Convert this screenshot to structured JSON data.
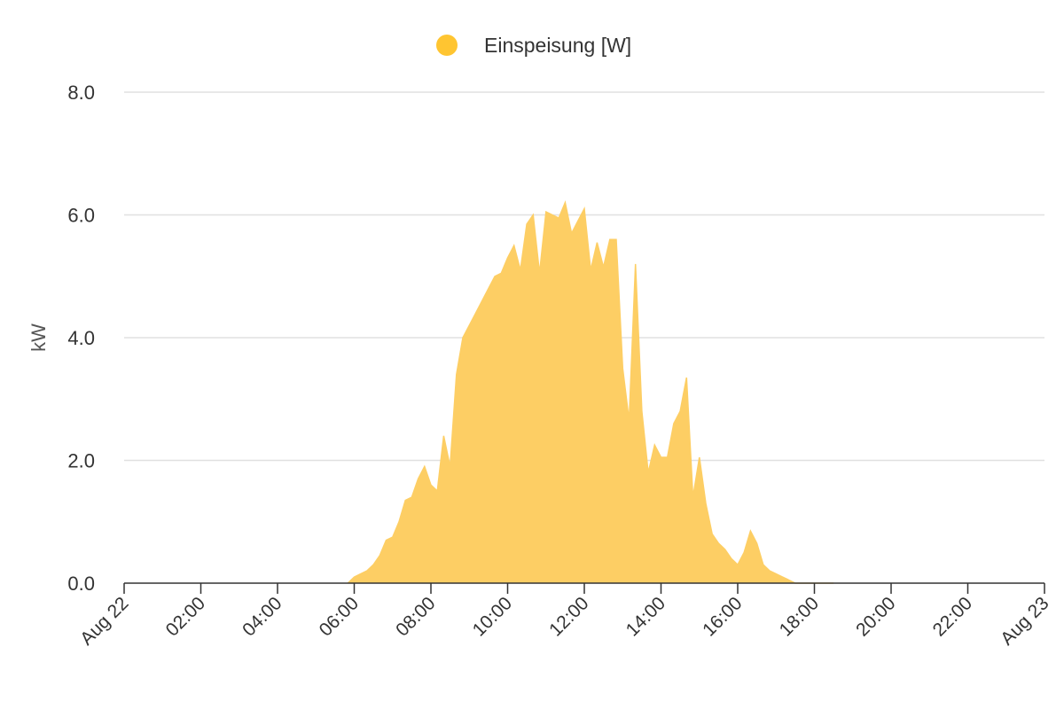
{
  "chart_data": {
    "type": "area",
    "title": "",
    "xlabel": "",
    "ylabel": "kW",
    "ylim": [
      0,
      8
    ],
    "xlim": [
      "Aug 22 00:00",
      "Aug 23 00:00"
    ],
    "y_ticks": [
      "0.0",
      "2.0",
      "4.0",
      "6.0",
      "8.0"
    ],
    "x_ticks": [
      "Aug 22",
      "02:00",
      "04:00",
      "06:00",
      "08:00",
      "10:00",
      "12:00",
      "14:00",
      "16:00",
      "18:00",
      "20:00",
      "22:00",
      "Aug 23"
    ],
    "grid": true,
    "legend_position": "top-center",
    "colors": {
      "series": "#FFC531",
      "series_fill": "#FDCE64",
      "grid": "#E0E0E0",
      "axis": "#333333"
    },
    "series": [
      {
        "name": "Einspeisung [W]",
        "x": [
          "05:50",
          "06:00",
          "06:10",
          "06:20",
          "06:30",
          "06:40",
          "06:50",
          "07:00",
          "07:10",
          "07:20",
          "07:30",
          "07:40",
          "07:50",
          "08:00",
          "08:10",
          "08:20",
          "08:30",
          "08:40",
          "08:50",
          "09:00",
          "09:10",
          "09:20",
          "09:30",
          "09:40",
          "09:50",
          "10:00",
          "10:10",
          "10:20",
          "10:30",
          "10:40",
          "10:50",
          "11:00",
          "11:10",
          "11:20",
          "11:30",
          "11:40",
          "11:50",
          "12:00",
          "12:10",
          "12:20",
          "12:30",
          "12:40",
          "12:50",
          "13:00",
          "13:10",
          "13:20",
          "13:30",
          "13:40",
          "13:50",
          "14:00",
          "14:10",
          "14:20",
          "14:30",
          "14:40",
          "14:50",
          "15:00",
          "15:10",
          "15:20",
          "15:30",
          "15:40",
          "15:50",
          "16:00",
          "16:10",
          "16:20",
          "16:30",
          "16:40",
          "16:50",
          "17:00",
          "17:10",
          "17:20",
          "17:30",
          "17:40",
          "17:50",
          "18:00",
          "18:10",
          "18:20",
          "18:30"
        ],
        "values": [
          0.0,
          0.1,
          0.15,
          0.2,
          0.3,
          0.45,
          0.7,
          0.75,
          1.0,
          1.35,
          1.4,
          1.7,
          1.9,
          1.6,
          1.5,
          2.4,
          1.9,
          3.4,
          4.0,
          4.2,
          4.4,
          4.6,
          4.8,
          5.0,
          5.05,
          5.3,
          5.5,
          5.1,
          5.85,
          6.0,
          5.05,
          6.05,
          6.0,
          5.95,
          6.2,
          5.7,
          5.9,
          6.1,
          5.1,
          5.55,
          5.15,
          5.6,
          5.6,
          3.5,
          2.65,
          5.2,
          2.8,
          1.8,
          2.25,
          2.05,
          2.05,
          2.6,
          2.8,
          3.35,
          1.4,
          2.05,
          1.3,
          0.8,
          0.65,
          0.55,
          0.4,
          0.3,
          0.5,
          0.85,
          0.65,
          0.3,
          0.2,
          0.15,
          0.1,
          0.05,
          0.0,
          0.0,
          0.0,
          0.0,
          0.0,
          0.0,
          0.0
        ]
      }
    ]
  }
}
